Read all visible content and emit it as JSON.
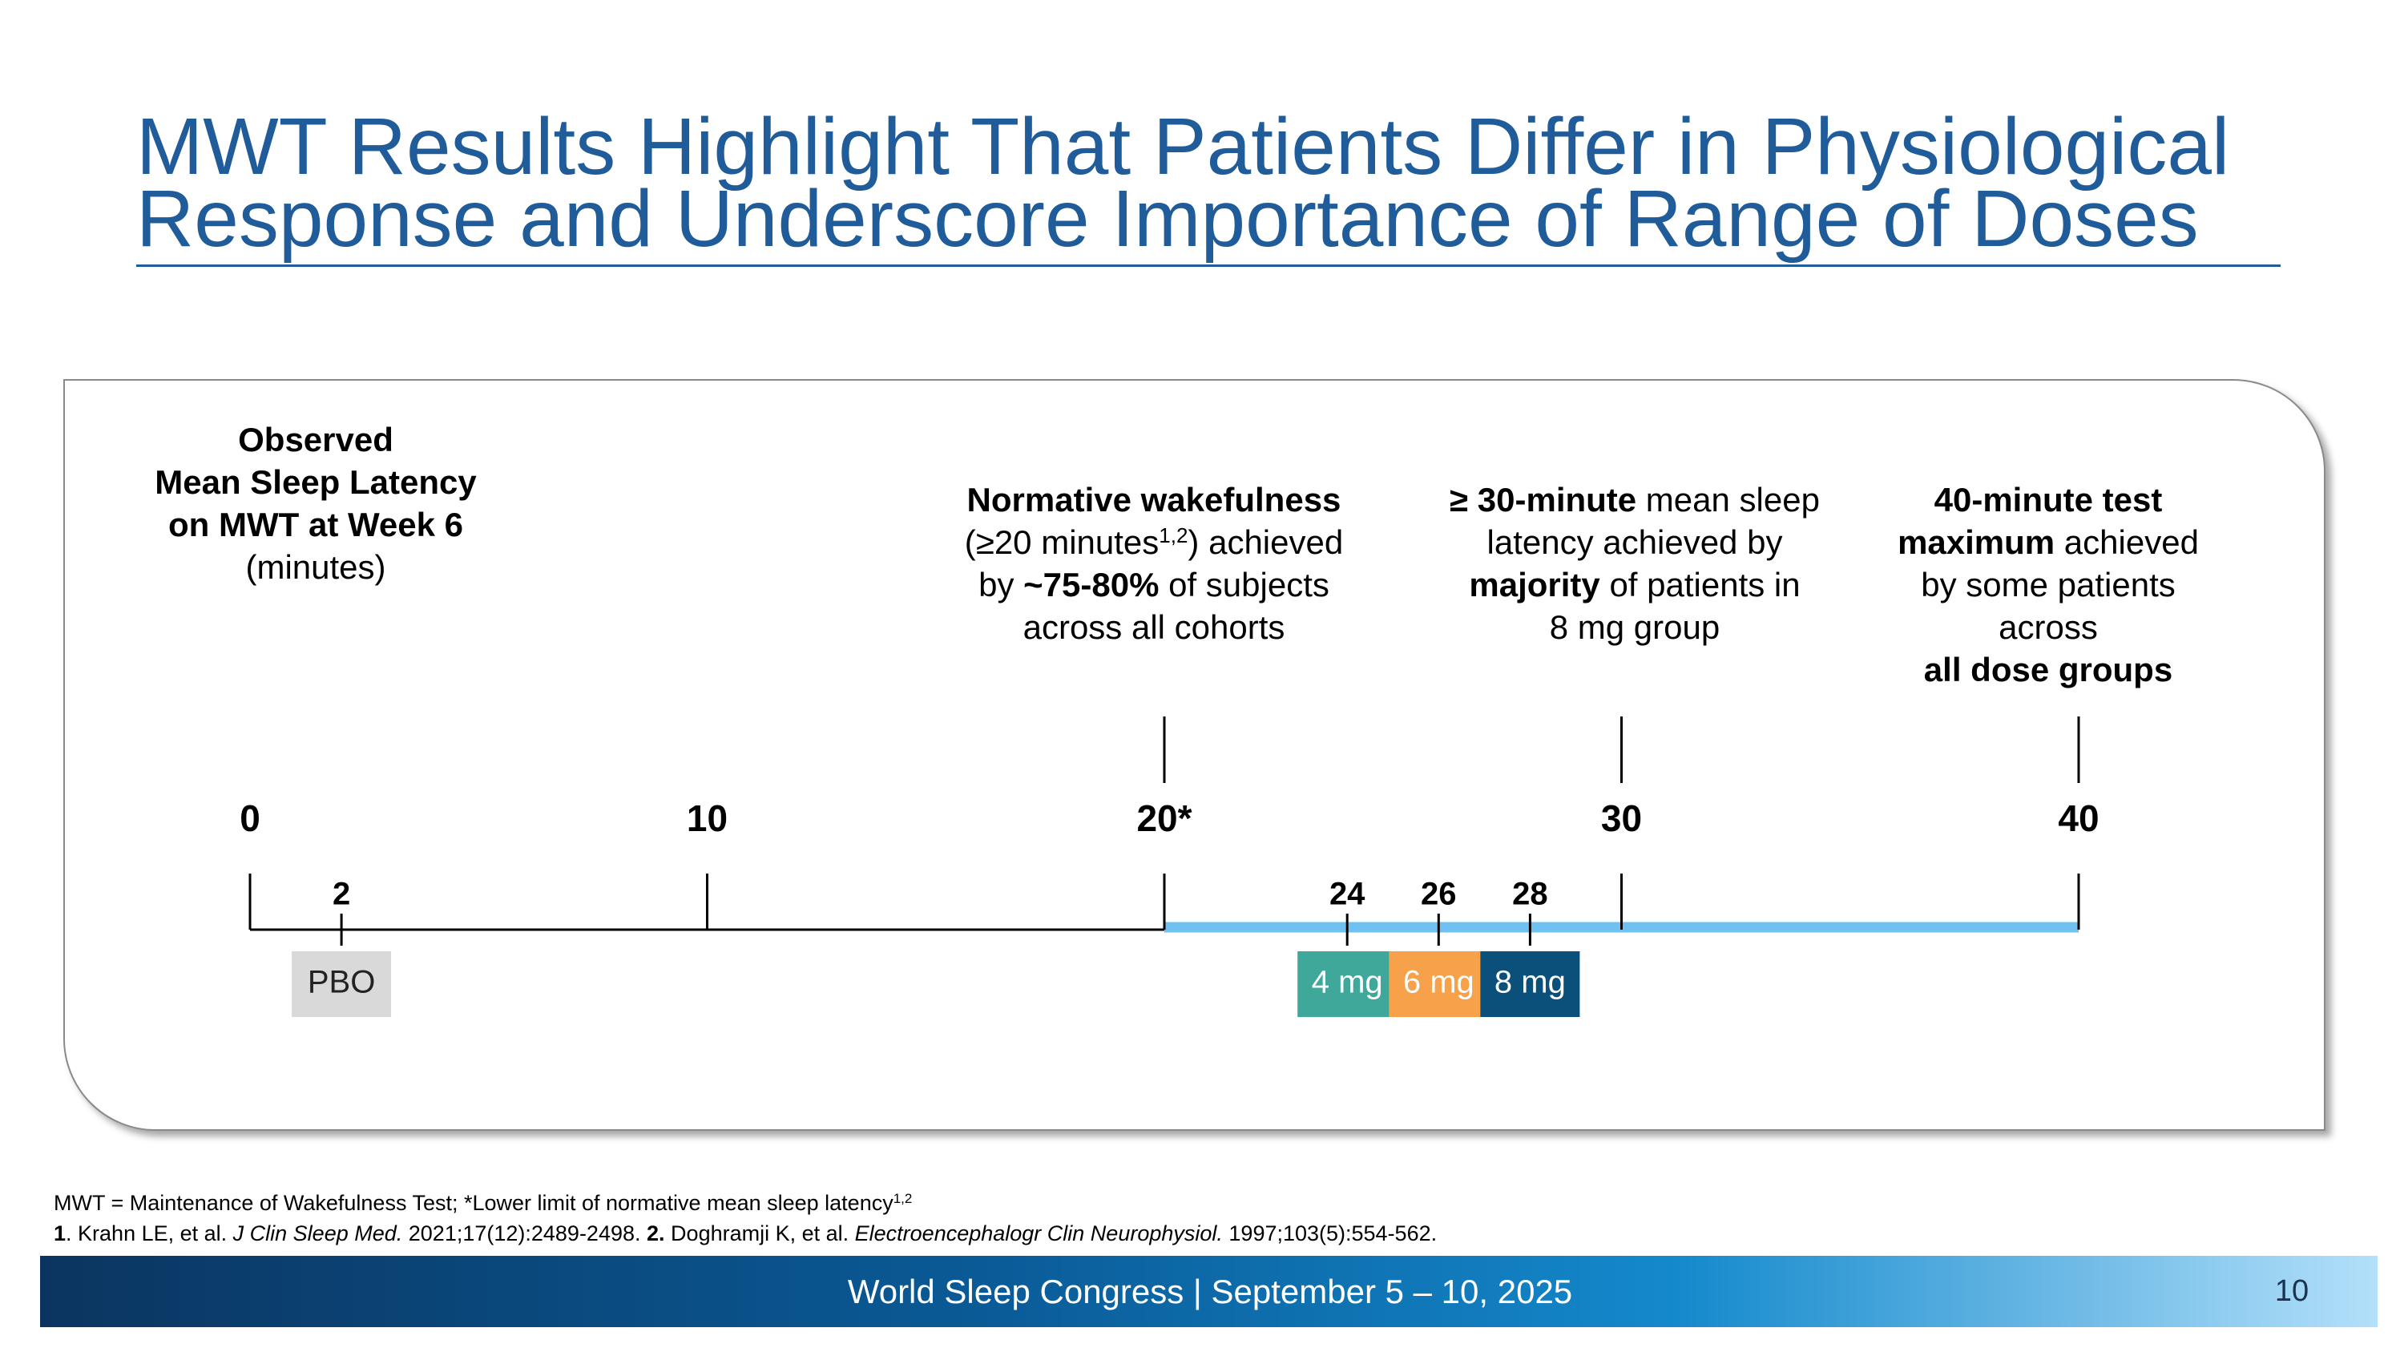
{
  "header": {
    "title_lines": [
      "MWT Results Highlight That Patients Differ in Physiological",
      "Response and Underscore Importance of Range of Doses"
    ]
  },
  "panel": {
    "heading": [
      "Observed",
      "Mean Sleep Latency",
      "on MWT at Week 6",
      "(minutes)"
    ],
    "callouts": [
      [
        [
          "Normative wakefulness"
        ],
        [
          "(≥20 minutes",
          "1,2",
          ") achieved"
        ],
        [
          "by ",
          "~75-80%",
          " of subjects"
        ],
        [
          "across all cohorts"
        ]
      ],
      [
        [
          "≥ 30-minute",
          " mean sleep"
        ],
        [
          "latency achieved by"
        ],
        [
          "majority",
          " of patients in"
        ],
        [
          "8 mg group"
        ]
      ],
      [
        [
          "40-minute test"
        ],
        [
          "maximum",
          " achieved"
        ],
        [
          "by some patients"
        ],
        [
          "across"
        ],
        [
          "all dose groups"
        ]
      ]
    ],
    "scale": {
      "xlim": [
        0,
        40
      ],
      "xticks": [
        0,
        10,
        {
          "value": 20,
          "label": "20*"
        },
        30,
        40
      ],
      "highlight": [
        20,
        40
      ],
      "highlight_color": "#6ec1f0"
    },
    "doses": [
      {
        "value": 2,
        "label": "PBO",
        "color": "#d9d9d9"
      },
      {
        "value": 24,
        "label": "4 mg",
        "color": "#3fa89a"
      },
      {
        "value": 26,
        "label": "6 mg",
        "color": "#f7a24b"
      },
      {
        "value": 28,
        "label": "8 mg",
        "color": "#0b4f7b"
      }
    ]
  },
  "footnotes": [
    [
      "MWT = Maintenance of Wakefulness Test; *Lower limit of normative mean sleep latency",
      "1,2"
    ],
    [
      "1",
      ". Krahn LE, et al. ",
      "J Clin Sleep Med.",
      " 2021;17(12):2489-2498. ",
      "2.",
      " Doghramji K, et al. ",
      "Electroencephalogr Clin Neurophysiol.",
      " 1997;103(5):554-562."
    ]
  ],
  "footer": {
    "text": "World Sleep Congress | September 5 – 10, 2025",
    "page": "10"
  }
}
